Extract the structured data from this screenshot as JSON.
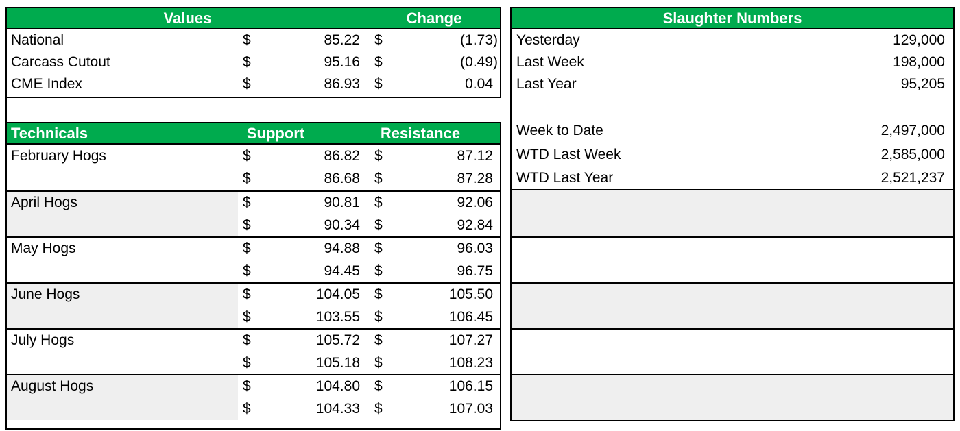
{
  "colors": {
    "header_green": "#00AB4E",
    "header_text": "#FFFFFF",
    "stripe_gray": "#EFEFEF",
    "border_black": "#000000",
    "text_black": "#000000"
  },
  "currency": "$",
  "values_table": {
    "values_header": "Values",
    "change_header": "Change",
    "rows": [
      {
        "label": "National",
        "value": "85.22",
        "change": "(1.73)"
      },
      {
        "label": "Carcass Cutout",
        "value": "95.16",
        "change": "(0.49)"
      },
      {
        "label": "CME Index",
        "value": "86.93",
        "change": "0.04"
      }
    ]
  },
  "technicals_table": {
    "technicals_header": "Technicals",
    "support_header": "Support",
    "resistance_header": "Resistance",
    "groups": [
      {
        "label": "February Hogs",
        "rows": [
          {
            "support": "86.82",
            "resistance": "87.12"
          },
          {
            "support": "86.68",
            "resistance": "87.28"
          }
        ]
      },
      {
        "label": "April Hogs",
        "rows": [
          {
            "support": "90.81",
            "resistance": "92.06"
          },
          {
            "support": "90.34",
            "resistance": "92.84"
          }
        ]
      },
      {
        "label": "May Hogs",
        "rows": [
          {
            "support": "94.88",
            "resistance": "96.03"
          },
          {
            "support": "94.45",
            "resistance": "96.75"
          }
        ]
      },
      {
        "label": "June Hogs",
        "rows": [
          {
            "support": "104.05",
            "resistance": "105.50"
          },
          {
            "support": "103.55",
            "resistance": "106.45"
          }
        ]
      },
      {
        "label": "July Hogs",
        "rows": [
          {
            "support": "105.72",
            "resistance": "107.27"
          },
          {
            "support": "105.18",
            "resistance": "108.23"
          }
        ]
      },
      {
        "label": "August Hogs",
        "rows": [
          {
            "support": "104.80",
            "resistance": "106.15"
          },
          {
            "support": "104.33",
            "resistance": "107.03"
          }
        ]
      }
    ]
  },
  "slaughter_table": {
    "header": "Slaughter Numbers",
    "daily_rows": [
      {
        "label": "Yesterday",
        "value": "129,000"
      },
      {
        "label": "Last Week",
        "value": "198,000"
      },
      {
        "label": "Last Year",
        "value": "95,205"
      }
    ],
    "wtd_rows": [
      {
        "label": "Week to Date",
        "value": "2,497,000"
      },
      {
        "label": "WTD Last Week",
        "value": "2,585,000"
      },
      {
        "label": "WTD Last Year",
        "value": "2,521,237"
      }
    ]
  }
}
